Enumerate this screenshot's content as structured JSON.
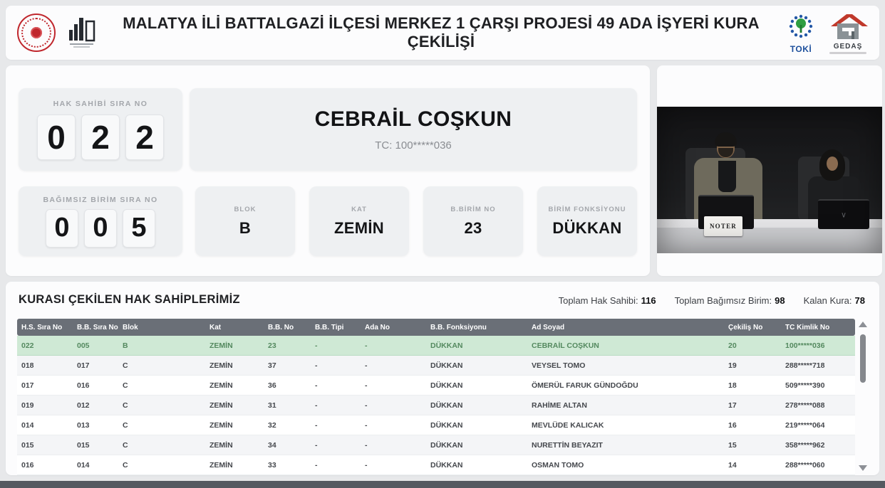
{
  "header": {
    "title": "MALATYA İLİ BATTALGAZİ İLÇESİ MERKEZ 1 ÇARŞI PROJESİ 49 ADA İŞYERİ KURA ÇEKİLİŞİ",
    "toki_label": "TOKİ",
    "gedas_label": "GEDAŞ"
  },
  "draw_panel": {
    "hak_sahibi": {
      "label": "HAK SAHİBİ SIRA NO",
      "digits": [
        "0",
        "2",
        "2"
      ]
    },
    "winner": {
      "name": "CEBRAİL COŞKUN",
      "tc": "TC: 100*****036"
    },
    "bagimsiz_birim": {
      "label": "BAĞIMSIZ BİRİM SIRA NO",
      "digits": [
        "0",
        "0",
        "5"
      ]
    },
    "info_cards": [
      {
        "label": "BLOK",
        "value": "B"
      },
      {
        "label": "KAT",
        "value": "ZEMİN"
      },
      {
        "label": "B.BİRİM NO",
        "value": "23"
      },
      {
        "label": "BİRİM FONKSİYONU",
        "value": "DÜKKAN"
      }
    ]
  },
  "video": {
    "noter_sign": "NOTER"
  },
  "results": {
    "title": "KURASI ÇEKİLEN HAK SAHİPLERİMİZ",
    "stats": [
      {
        "label": "Toplam Hak Sahibi:",
        "value": "116"
      },
      {
        "label": "Toplam Bağımsız Birim:",
        "value": "98"
      },
      {
        "label": "Kalan Kura:",
        "value": "78"
      }
    ],
    "columns": [
      "H.S. Sıra No",
      "B.B. Sıra No",
      "Blok",
      "Kat",
      "B.B. No",
      "B.B. Tipi",
      "Ada No",
      "B.B. Fonksiyonu",
      "Ad Soyad",
      "Çekiliş No",
      "TC Kimlik No"
    ],
    "highlight_index": 0,
    "rows": [
      [
        "022",
        "005",
        "B",
        "ZEMİN",
        "23",
        "-",
        "-",
        "DÜKKAN",
        "CEBRAİL COŞKUN",
        "20",
        "100*****036"
      ],
      [
        "018",
        "017",
        "C",
        "ZEMİN",
        "37",
        "-",
        "-",
        "DÜKKAN",
        "VEYSEL TOMO",
        "19",
        "288*****718"
      ],
      [
        "017",
        "016",
        "C",
        "ZEMİN",
        "36",
        "-",
        "-",
        "DÜKKAN",
        "ÖMERÜL FARUK GÜNDOĞDU",
        "18",
        "509*****390"
      ],
      [
        "019",
        "012",
        "C",
        "ZEMİN",
        "31",
        "-",
        "-",
        "DÜKKAN",
        "RAHİME ALTAN",
        "17",
        "278*****088"
      ],
      [
        "014",
        "013",
        "C",
        "ZEMİN",
        "32",
        "-",
        "-",
        "DÜKKAN",
        "MEVLÜDE KALICAK",
        "16",
        "219*****064"
      ],
      [
        "015",
        "015",
        "C",
        "ZEMİN",
        "34",
        "-",
        "-",
        "DÜKKAN",
        "NURETTİN BEYAZIT",
        "15",
        "358*****962"
      ],
      [
        "016",
        "014",
        "C",
        "ZEMİN",
        "33",
        "-",
        "-",
        "DÜKKAN",
        "OSMAN TOMO",
        "14",
        "288*****060"
      ]
    ]
  },
  "colors": {
    "highlight_row_bg": "#cfe9d5",
    "highlight_row_text": "#54895f",
    "table_header_bg": "#6a6f77",
    "footer_bar": "#555960",
    "accent_red": "#c0272d",
    "toki_blue": "#1c4f9c",
    "toki_green": "#2f9e41"
  }
}
